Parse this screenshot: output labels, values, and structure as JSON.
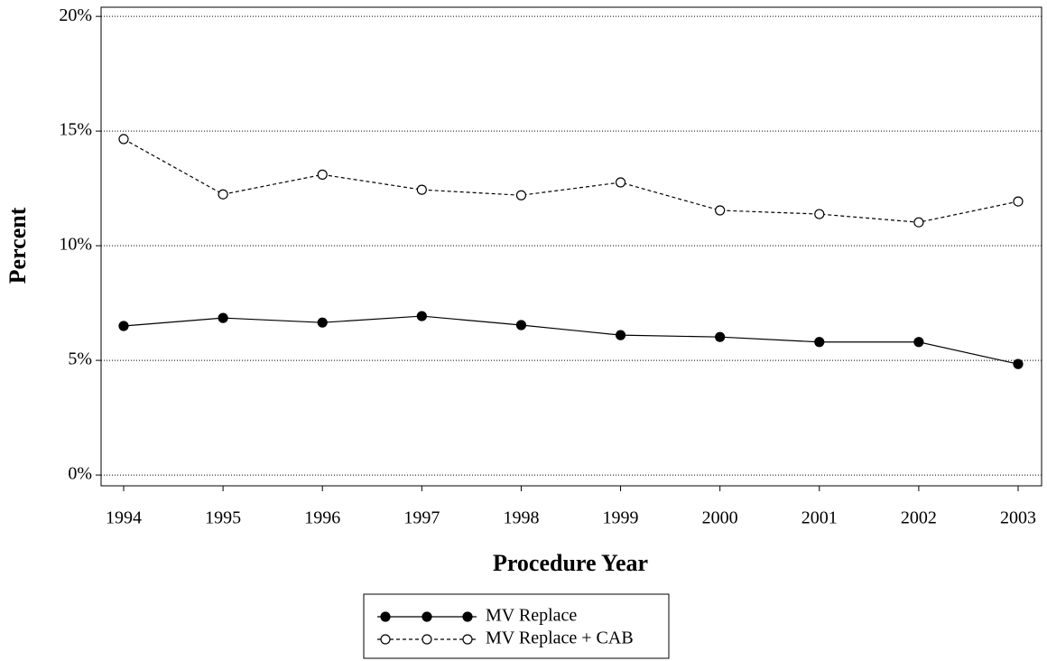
{
  "chart_data": {
    "type": "line",
    "xlabel": "Procedure Year",
    "ylabel": "Percent",
    "categories": [
      "1994",
      "1995",
      "1996",
      "1997",
      "1998",
      "1999",
      "2000",
      "2001",
      "2002",
      "2003"
    ],
    "series": [
      {
        "name": "MV Replace",
        "color": "#000000",
        "line_style": "solid",
        "marker_fill": "filled",
        "values": [
          6.5,
          6.85,
          6.65,
          6.93,
          6.54,
          6.1,
          6.02,
          5.8,
          5.8,
          4.84
        ]
      },
      {
        "name": "MV Replace + CAB",
        "color": "#000000",
        "line_style": "dashed",
        "marker_fill": "open",
        "values": [
          14.65,
          12.24,
          13.1,
          12.44,
          12.2,
          12.76,
          11.54,
          11.38,
          11.02,
          11.93
        ]
      }
    ],
    "ylim": [
      -0.47,
      20.4
    ],
    "yticks": [
      {
        "value": 0,
        "label": "0%"
      },
      {
        "value": 5,
        "label": "5%"
      },
      {
        "value": 10,
        "label": "10%"
      },
      {
        "value": 15,
        "label": "15%"
      },
      {
        "value": 20,
        "label": "20%"
      }
    ],
    "grid": true,
    "legend": "bottom"
  }
}
